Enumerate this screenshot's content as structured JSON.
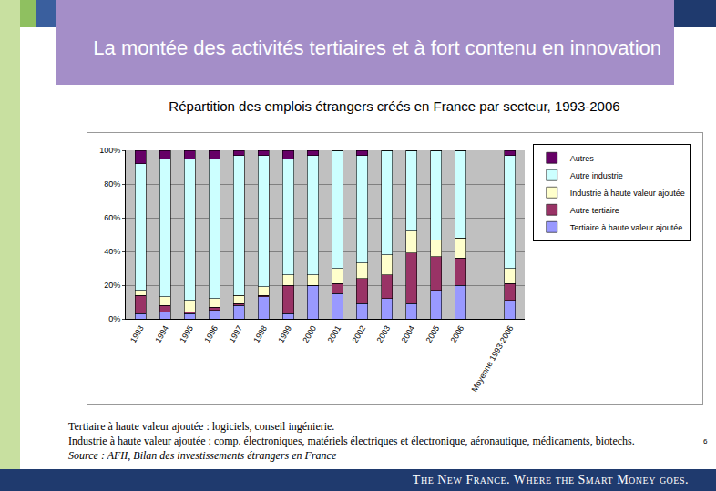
{
  "chart_data": {
    "type": "bar",
    "title": "La montée des activités tertiaires et à fort contenu en innovation",
    "subtitle": "Répartition des emplois étrangers créés en France par secteur, 1993-2006",
    "categories": [
      "1993",
      "1994",
      "1995",
      "1996",
      "1997",
      "1998",
      "1999",
      "2000",
      "2001",
      "2002",
      "2003",
      "2004",
      "2005",
      "2006",
      null,
      "Moyenne 1993-2006"
    ],
    "series": [
      {
        "name": "Tertiaire à haute valeur ajoutée",
        "color": "#9999ff",
        "values": [
          3,
          4,
          3,
          5,
          8,
          13,
          3,
          20,
          15,
          9,
          12,
          9,
          17,
          20,
          null,
          11
        ]
      },
      {
        "name": "Autre tertiaire",
        "color": "#993366",
        "values": [
          11,
          4,
          1,
          2,
          1,
          1,
          17,
          0,
          6,
          15,
          14,
          30,
          20,
          16,
          null,
          10
        ]
      },
      {
        "name": "Industrie à haute valeur ajoutée",
        "color": "#ffffcc",
        "values": [
          3,
          5,
          7,
          5,
          5,
          5,
          6,
          6,
          9,
          9,
          12,
          13,
          10,
          12,
          null,
          9
        ]
      },
      {
        "name": "Autre industrie",
        "color": "#ccffff",
        "values": [
          75,
          82,
          84,
          83,
          83,
          78,
          69,
          71,
          70,
          64,
          62,
          48,
          53,
          52,
          null,
          67
        ]
      },
      {
        "name": "Autres",
        "color": "#660066",
        "values": [
          8,
          5,
          5,
          5,
          3,
          3,
          5,
          3,
          0,
          3,
          0,
          0,
          0,
          0,
          null,
          3
        ]
      }
    ],
    "ylim": [
      0,
      100
    ],
    "yticks": [
      {
        "value": 0,
        "label": "0%"
      },
      {
        "value": 20,
        "label": "20%"
      },
      {
        "value": 40,
        "label": "40%"
      },
      {
        "value": 60,
        "label": "60%"
      },
      {
        "value": 80,
        "label": "80%"
      },
      {
        "value": 100,
        "label": "100%"
      }
    ],
    "stacked": true,
    "grid": true,
    "legend": "right",
    "annotations": [
      "Tertiaire à haute valeur ajoutée : logiciels, conseil ingénierie.",
      "Industrie à haute valeur ajoutée : comp. électroniques,  matériels électriques et électronique, aéronautique, médicaments, biotechs.",
      "Source : AFII, Bilan des investissements étrangers en France",
      "The New France. Where the Smart Money goes.",
      "6"
    ]
  }
}
